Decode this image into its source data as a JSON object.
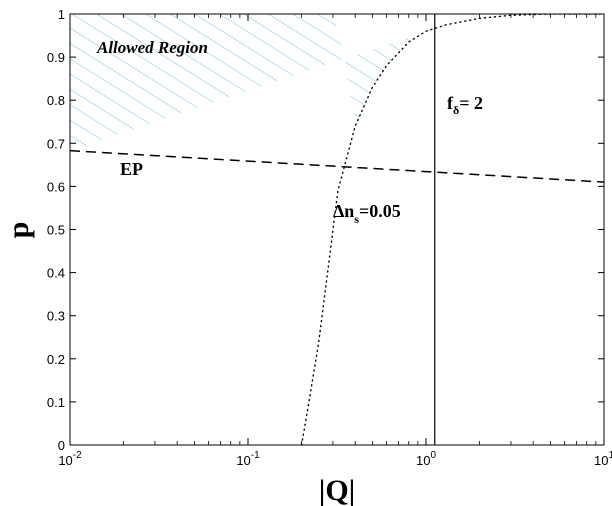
{
  "chart_data": {
    "type": "line",
    "title": "",
    "xlabel": "|Q|",
    "ylabel": "p",
    "xscale": "log",
    "xlim": [
      0.01,
      10
    ],
    "ylim": [
      0,
      1
    ],
    "grid": false,
    "x_ticks": [
      {
        "value": 0.01,
        "base": "10",
        "exp": "-2"
      },
      {
        "value": 0.1,
        "base": "10",
        "exp": "-1"
      },
      {
        "value": 1,
        "base": "10",
        "exp": "0"
      },
      {
        "value": 10,
        "base": "10",
        "exp": "1"
      }
    ],
    "y_ticks": [
      {
        "value": 0,
        "label": "0"
      },
      {
        "value": 0.1,
        "label": "0.1"
      },
      {
        "value": 0.2,
        "label": "0.2"
      },
      {
        "value": 0.3,
        "label": "0.3"
      },
      {
        "value": 0.4,
        "label": "0.4"
      },
      {
        "value": 0.5,
        "label": "0.5"
      },
      {
        "value": 0.6,
        "label": "0.6"
      },
      {
        "value": 0.7,
        "label": "0.7"
      },
      {
        "value": 0.8,
        "label": "0.8"
      },
      {
        "value": 0.9,
        "label": "0.9"
      },
      {
        "value": 1,
        "label": "1"
      }
    ],
    "series": [
      {
        "id": "ep",
        "style": "dashed",
        "color": "#000000",
        "x": [
          0.01,
          10
        ],
        "y": [
          0.683,
          0.61
        ]
      },
      {
        "id": "dns",
        "style": "dotted",
        "color": "#000000",
        "x": [
          0.2,
          0.22,
          0.25,
          0.28,
          0.32,
          0.35,
          0.4,
          0.5,
          0.6,
          0.8,
          1.0,
          1.3,
          2.0,
          3.0,
          5.0,
          10.0
        ],
        "y": [
          0.0,
          0.1,
          0.24,
          0.4,
          0.59,
          0.65,
          0.74,
          0.83,
          0.88,
          0.935,
          0.96,
          0.975,
          0.99,
          0.997,
          1.0,
          1.0
        ]
      },
      {
        "id": "fdelta",
        "style": "solid",
        "color": "#000000",
        "x": [
          1.12,
          1.12
        ],
        "y": [
          0,
          1
        ]
      }
    ],
    "regions": [
      {
        "id": "allowed",
        "label": "Allowed Region",
        "hatch_color": "#7ec8e6",
        "x": [
          0.01,
          0.01,
          0.3,
          0.35,
          0.4,
          0.5,
          0.6,
          0.8,
          1.0
        ],
        "y": [
          0.683,
          1.0,
          1.0,
          0.9,
          0.74,
          0.83,
          0.88,
          0.935,
          0.96
        ]
      }
    ],
    "annotations": {
      "allowed_region": "Allowed Region",
      "ep": "EP",
      "fdelta_main": "f",
      "fdelta_sub": "δ",
      "fdelta_rest": "= 2",
      "dns_delta": "Δn",
      "dns_sub": "s",
      "dns_rest": "=0.05"
    }
  }
}
